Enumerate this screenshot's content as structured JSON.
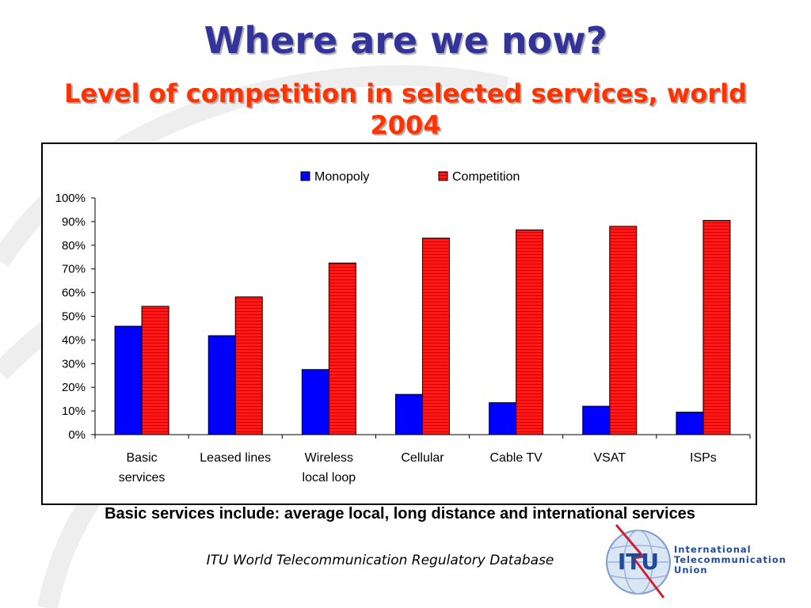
{
  "slide": {
    "title": "Where are we now?",
    "subtitle": "Level of competition in selected services, world 2004",
    "footnote": "Basic services include: average local, long distance and international services",
    "source": "ITU World Telecommunication Regulatory Database"
  },
  "logo": {
    "mark": "ITU",
    "lines": [
      "International",
      "Telecommunication",
      "Union"
    ]
  },
  "colors": {
    "monopoly": "#0000ff",
    "competition": "#ff0000",
    "title": "#33339a",
    "subtitle": "#ff3300"
  },
  "chart_data": {
    "type": "bar",
    "categories": [
      [
        "Basic",
        "services"
      ],
      [
        "Leased lines"
      ],
      [
        "Wireless",
        "local loop"
      ],
      [
        "Cellular"
      ],
      [
        "Cable TV"
      ],
      [
        "VSAT"
      ],
      [
        "ISPs"
      ]
    ],
    "series": [
      {
        "name": "Monopoly",
        "values": [
          45.8,
          41.8,
          27.5,
          17.0,
          13.5,
          12.0,
          9.5
        ]
      },
      {
        "name": "Competition",
        "values": [
          54.2,
          58.2,
          72.5,
          83.0,
          86.5,
          88.0,
          90.5
        ]
      }
    ],
    "ylim": [
      0,
      100
    ],
    "yticks": [
      "0%",
      "10%",
      "20%",
      "30%",
      "40%",
      "50%",
      "60%",
      "70%",
      "80%",
      "90%",
      "100%"
    ],
    "legend": "top",
    "grid": false
  }
}
